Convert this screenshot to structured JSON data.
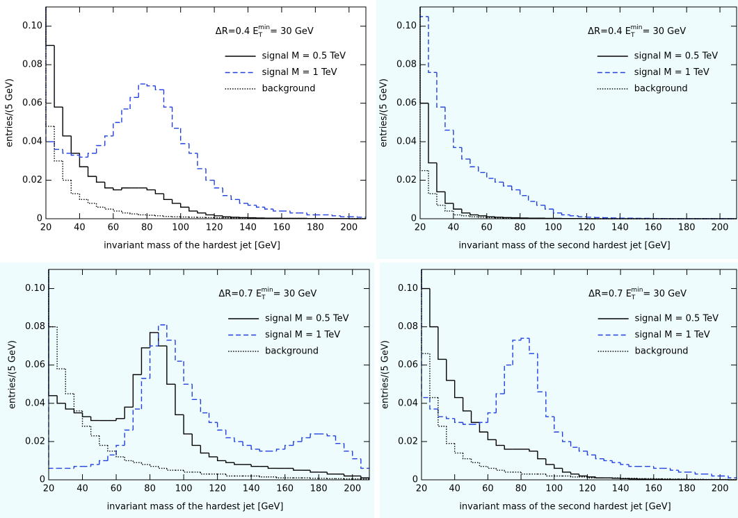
{
  "chart_data": [
    {
      "type": "histogram",
      "background": "#ffffff",
      "annotation": {
        "text": "ΔR=0.4  E",
        "sub": "T",
        "sup": "min",
        "tail": "= 30 GeV"
      },
      "xlabel": "invariant mass of the hardest jet  [GeV]",
      "ylabel": "entries/(5 GeV)",
      "xlim": [
        20,
        210
      ],
      "ylim": [
        0,
        0.11
      ],
      "xticks": [
        20,
        40,
        60,
        80,
        100,
        120,
        140,
        160,
        180,
        200
      ],
      "yticks": [
        0,
        0.02,
        0.04,
        0.06,
        0.08,
        {
          "value": 0.1,
          "label": "0.10"
        }
      ],
      "legend": "upper right",
      "bins": [
        20,
        25,
        30,
        35,
        40,
        45,
        50,
        55,
        60,
        65,
        70,
        75,
        80,
        85,
        90,
        95,
        100,
        105,
        110,
        115,
        120,
        125,
        130,
        135,
        140,
        145,
        150,
        155,
        160,
        165,
        170,
        175,
        180,
        185,
        190,
        195,
        200,
        205,
        210
      ],
      "series": [
        {
          "name": "signal  M = 0.5 TeV",
          "color": "#000000",
          "dash": "solid",
          "values": [
            0.09,
            0.058,
            0.043,
            0.034,
            0.027,
            0.022,
            0.019,
            0.016,
            0.015,
            0.016,
            0.016,
            0.016,
            0.015,
            0.013,
            0.01,
            0.008,
            0.006,
            0.004,
            0.003,
            0.002,
            0.0015,
            0.001,
            0.0008,
            0.0006,
            0.0005,
            0.0004,
            0.0003,
            0.0003,
            0.0002,
            0.0002,
            0.0002,
            0.0001,
            0.0001,
            0.0001,
            0.0001,
            0.0001,
            0,
            0
          ]
        },
        {
          "name": "signal  M = 1 TeV",
          "color": "#1f3fdf",
          "dash": "dashed",
          "values": [
            0.04,
            0.036,
            0.034,
            0.033,
            0.032,
            0.034,
            0.038,
            0.043,
            0.05,
            0.057,
            0.063,
            0.07,
            0.069,
            0.067,
            0.058,
            0.047,
            0.039,
            0.034,
            0.026,
            0.02,
            0.016,
            0.012,
            0.01,
            0.008,
            0.007,
            0.006,
            0.005,
            0.004,
            0.004,
            0.003,
            0.003,
            0.002,
            0.002,
            0.002,
            0.0015,
            0.001,
            0.001,
            0.0008
          ]
        },
        {
          "name": "background",
          "color": "#000000",
          "dash": "dotted",
          "values": [
            0.048,
            0.03,
            0.02,
            0.013,
            0.01,
            0.008,
            0.006,
            0.005,
            0.004,
            0.003,
            0.0025,
            0.002,
            0.0018,
            0.0015,
            0.0012,
            0.001,
            0.0009,
            0.0008,
            0.0007,
            0.0006,
            0.0005,
            0.0005,
            0.0004,
            0.0004,
            0.0003,
            0.0003,
            0.0003,
            0.0002,
            0.0002,
            0.0002,
            0.0002,
            0.0001,
            0.0001,
            0.0001,
            0.0001,
            0.0001,
            0.0001,
            0.0001
          ]
        }
      ]
    },
    {
      "type": "histogram",
      "background": "#effcfd",
      "annotation": {
        "text": "ΔR=0.4  E",
        "sub": "T",
        "sup": "min",
        "tail": "= 30 GeV"
      },
      "xlabel": "invariant mass of the second hardest jet  [GeV]",
      "ylabel": "entries/(5 GeV)",
      "xlim": [
        20,
        210
      ],
      "ylim": [
        0,
        0.11
      ],
      "xticks": [
        20,
        40,
        60,
        80,
        100,
        120,
        140,
        160,
        180,
        200
      ],
      "yticks": [
        0,
        0.02,
        0.04,
        0.06,
        0.08,
        {
          "value": 0.1,
          "label": "0.10"
        }
      ],
      "legend": "upper right",
      "bins": [
        20,
        25,
        30,
        35,
        40,
        45,
        50,
        55,
        60,
        65,
        70,
        75,
        80,
        85,
        90,
        95,
        100,
        105,
        110,
        115,
        120,
        125,
        130,
        135,
        140,
        145,
        150,
        155,
        160,
        165,
        170,
        175,
        180,
        185,
        190,
        195,
        200,
        205,
        210
      ],
      "series": [
        {
          "name": "signal  M = 0.5 TeV",
          "color": "#000000",
          "dash": "solid",
          "values": [
            0.06,
            0.029,
            0.014,
            0.008,
            0.005,
            0.003,
            0.002,
            0.0015,
            0.001,
            0.0008,
            0.0006,
            0.0005,
            0.0004,
            0.0003,
            0.0003,
            0.0002,
            0.0002,
            0.0001,
            0.0001,
            0.0001,
            0,
            0,
            0,
            0,
            0,
            0,
            0,
            0,
            0,
            0,
            0,
            0,
            0,
            0,
            0,
            0,
            0,
            0
          ]
        },
        {
          "name": "signal  M = 1 TeV",
          "color": "#1f3fdf",
          "dash": "dashed",
          "values": [
            0.105,
            0.076,
            0.058,
            0.046,
            0.037,
            0.031,
            0.027,
            0.024,
            0.021,
            0.019,
            0.017,
            0.015,
            0.012,
            0.009,
            0.007,
            0.005,
            0.003,
            0.002,
            0.0015,
            0.001,
            0.0008,
            0.0006,
            0.0005,
            0.0004,
            0.0003,
            0.0003,
            0.0002,
            0.0002,
            0.0001,
            0.0001,
            0,
            0,
            0,
            0,
            0,
            0,
            0,
            0
          ]
        },
        {
          "name": "background",
          "color": "#000000",
          "dash": "dotted",
          "values": [
            0.025,
            0.013,
            0.007,
            0.004,
            0.002,
            0.0015,
            0.001,
            0.0008,
            0.0006,
            0.0005,
            0.0004,
            0.0003,
            0.0003,
            0.0002,
            0.0002,
            0.0001,
            0.0001,
            0.0001,
            0.0001,
            0.0001,
            0,
            0,
            0,
            0,
            0,
            0,
            0,
            0,
            0,
            0,
            0,
            0,
            0,
            0,
            0,
            0,
            0,
            0
          ]
        }
      ]
    },
    {
      "type": "histogram",
      "background": "#effcfd",
      "annotation": {
        "text": "ΔR=0.7  E",
        "sub": "T",
        "sup": "min",
        "tail": "= 30 GeV"
      },
      "xlabel": "invariant mass of the hardest jet  [GeV]",
      "ylabel": "entries/(5 GeV)",
      "xlim": [
        20,
        210
      ],
      "ylim": [
        0,
        0.11
      ],
      "xticks": [
        20,
        40,
        60,
        80,
        100,
        120,
        140,
        160,
        180,
        200
      ],
      "yticks": [
        0,
        0.02,
        0.04,
        0.06,
        0.08,
        {
          "value": 0.1,
          "label": "0.10"
        }
      ],
      "legend": "upper right",
      "bins": [
        20,
        25,
        30,
        35,
        40,
        45,
        50,
        55,
        60,
        65,
        70,
        75,
        80,
        85,
        90,
        95,
        100,
        105,
        110,
        115,
        120,
        125,
        130,
        135,
        140,
        145,
        150,
        155,
        160,
        165,
        170,
        175,
        180,
        185,
        190,
        195,
        200,
        205,
        210
      ],
      "series": [
        {
          "name": "signal  M = 0.5 TeV",
          "color": "#000000",
          "dash": "solid",
          "values": [
            0.044,
            0.04,
            0.037,
            0.035,
            0.033,
            0.031,
            0.031,
            0.031,
            0.032,
            0.038,
            0.055,
            0.069,
            0.077,
            0.07,
            0.05,
            0.034,
            0.024,
            0.018,
            0.014,
            0.012,
            0.01,
            0.009,
            0.008,
            0.008,
            0.007,
            0.007,
            0.006,
            0.006,
            0.006,
            0.005,
            0.005,
            0.004,
            0.004,
            0.003,
            0.003,
            0.002,
            0.002,
            0.001
          ]
        },
        {
          "name": "signal  M = 1 TeV",
          "color": "#1f3fdf",
          "dash": "dashed",
          "values": [
            0.006,
            0.006,
            0.006,
            0.007,
            0.007,
            0.008,
            0.01,
            0.013,
            0.018,
            0.026,
            0.037,
            0.053,
            0.07,
            0.081,
            0.073,
            0.062,
            0.05,
            0.042,
            0.035,
            0.03,
            0.026,
            0.022,
            0.02,
            0.018,
            0.016,
            0.015,
            0.015,
            0.016,
            0.018,
            0.02,
            0.022,
            0.024,
            0.024,
            0.023,
            0.019,
            0.015,
            0.011,
            0.006
          ]
        },
        {
          "name": "background",
          "color": "#000000",
          "dash": "dotted",
          "values": [
            0.08,
            0.058,
            0.045,
            0.036,
            0.028,
            0.023,
            0.018,
            0.015,
            0.012,
            0.01,
            0.009,
            0.008,
            0.007,
            0.006,
            0.005,
            0.005,
            0.004,
            0.004,
            0.003,
            0.003,
            0.003,
            0.002,
            0.002,
            0.002,
            0.002,
            0.0015,
            0.0015,
            0.001,
            0.001,
            0.001,
            0.001,
            0.0008,
            0.0008,
            0.0006,
            0.0006,
            0.0005,
            0.0005,
            0.0004
          ]
        }
      ]
    },
    {
      "type": "histogram",
      "background": "#effcfd",
      "annotation": {
        "text": "ΔR=0.7  E",
        "sub": "T",
        "sup": "min",
        "tail": "= 30 GeV"
      },
      "xlabel": "invariant mass of the second hardest jet  [GeV]",
      "ylabel": "entries/(5 GeV)",
      "xlim": [
        20,
        210
      ],
      "ylim": [
        0,
        0.11
      ],
      "xticks": [
        20,
        40,
        60,
        80,
        100,
        120,
        140,
        160,
        180,
        200
      ],
      "yticks": [
        0,
        0.02,
        0.04,
        0.06,
        0.08,
        {
          "value": 0.1,
          "label": "0.10"
        }
      ],
      "legend": "upper right",
      "bins": [
        20,
        25,
        30,
        35,
        40,
        45,
        50,
        55,
        60,
        65,
        70,
        75,
        80,
        85,
        90,
        95,
        100,
        105,
        110,
        115,
        120,
        125,
        130,
        135,
        140,
        145,
        150,
        155,
        160,
        165,
        170,
        175,
        180,
        185,
        190,
        195,
        200,
        205,
        210
      ],
      "series": [
        {
          "name": "signal  M = 0.5 TeV",
          "color": "#000000",
          "dash": "solid",
          "values": [
            0.1,
            0.08,
            0.063,
            0.052,
            0.043,
            0.036,
            0.03,
            0.025,
            0.021,
            0.018,
            0.016,
            0.016,
            0.016,
            0.015,
            0.011,
            0.008,
            0.006,
            0.004,
            0.003,
            0.002,
            0.0015,
            0.001,
            0.001,
            0.0008,
            0.0006,
            0.0005,
            0.0004,
            0.0003,
            0.0003,
            0.0002,
            0.0002,
            0.0002,
            0.0001,
            0.0001,
            0.0001,
            0.0001,
            0.0001,
            0
          ]
        },
        {
          "name": "signal  M = 1 TeV",
          "color": "#1f3fdf",
          "dash": "dashed",
          "values": [
            0.043,
            0.037,
            0.033,
            0.032,
            0.03,
            0.029,
            0.029,
            0.03,
            0.035,
            0.045,
            0.06,
            0.073,
            0.074,
            0.066,
            0.046,
            0.033,
            0.025,
            0.02,
            0.017,
            0.015,
            0.013,
            0.011,
            0.01,
            0.009,
            0.008,
            0.007,
            0.007,
            0.007,
            0.006,
            0.006,
            0.005,
            0.004,
            0.004,
            0.003,
            0.003,
            0.002,
            0.002,
            0.001
          ]
        },
        {
          "name": "background",
          "color": "#000000",
          "dash": "dotted",
          "values": [
            0.066,
            0.043,
            0.028,
            0.019,
            0.014,
            0.011,
            0.009,
            0.007,
            0.006,
            0.005,
            0.004,
            0.004,
            0.003,
            0.003,
            0.003,
            0.002,
            0.002,
            0.002,
            0.0015,
            0.0015,
            0.001,
            0.001,
            0.001,
            0.001,
            0.0008,
            0.0008,
            0.0006,
            0.0006,
            0.0005,
            0.0005,
            0.0004,
            0.0004,
            0.0003,
            0.0003,
            0.0002,
            0.0002,
            0.0002,
            0.0001
          ]
        }
      ]
    }
  ]
}
